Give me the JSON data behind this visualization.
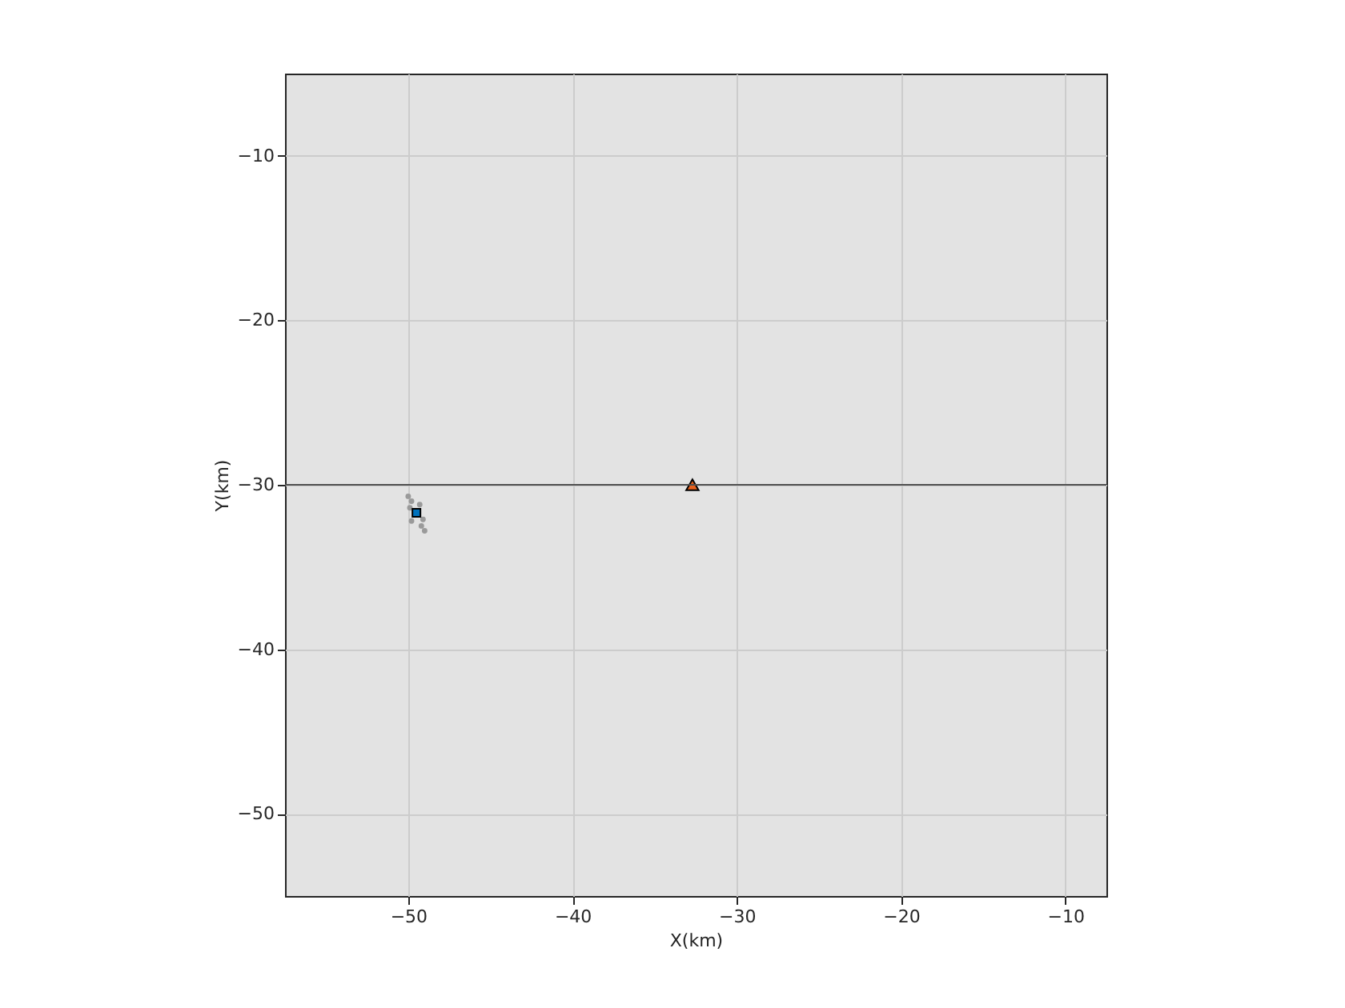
{
  "chart_data": {
    "type": "scatter",
    "xlabel": "X(km)",
    "ylabel": "Y(km)",
    "xlim": [
      -57.5,
      -7.5
    ],
    "ylim": [
      -55,
      -5
    ],
    "xticks": [
      -50,
      -40,
      -30,
      -20,
      -10
    ],
    "yticks": [
      -50,
      -40,
      -30,
      -20,
      -10
    ],
    "grid": true,
    "ref_lines": [
      {
        "axis": "y",
        "value": -30,
        "color": "#505050"
      }
    ],
    "series": [
      {
        "color": "#9a9a9a",
        "marker": "circle",
        "x": [
          -50.0,
          -49.8,
          -49.9,
          -49.3,
          -49.1,
          -49.8,
          -49.2,
          -49.0
        ],
        "values": [
          -30.7,
          -31.0,
          -31.4,
          -31.2,
          -32.1,
          -32.2,
          -32.5,
          -32.8
        ]
      },
      {
        "color": "#0072bd",
        "marker": "square",
        "x": [
          -49.5
        ],
        "values": [
          -31.7
        ]
      },
      {
        "color": "#e8601c",
        "marker": "triangle",
        "x": [
          -32.7
        ],
        "values": [
          -30
        ]
      }
    ]
  }
}
